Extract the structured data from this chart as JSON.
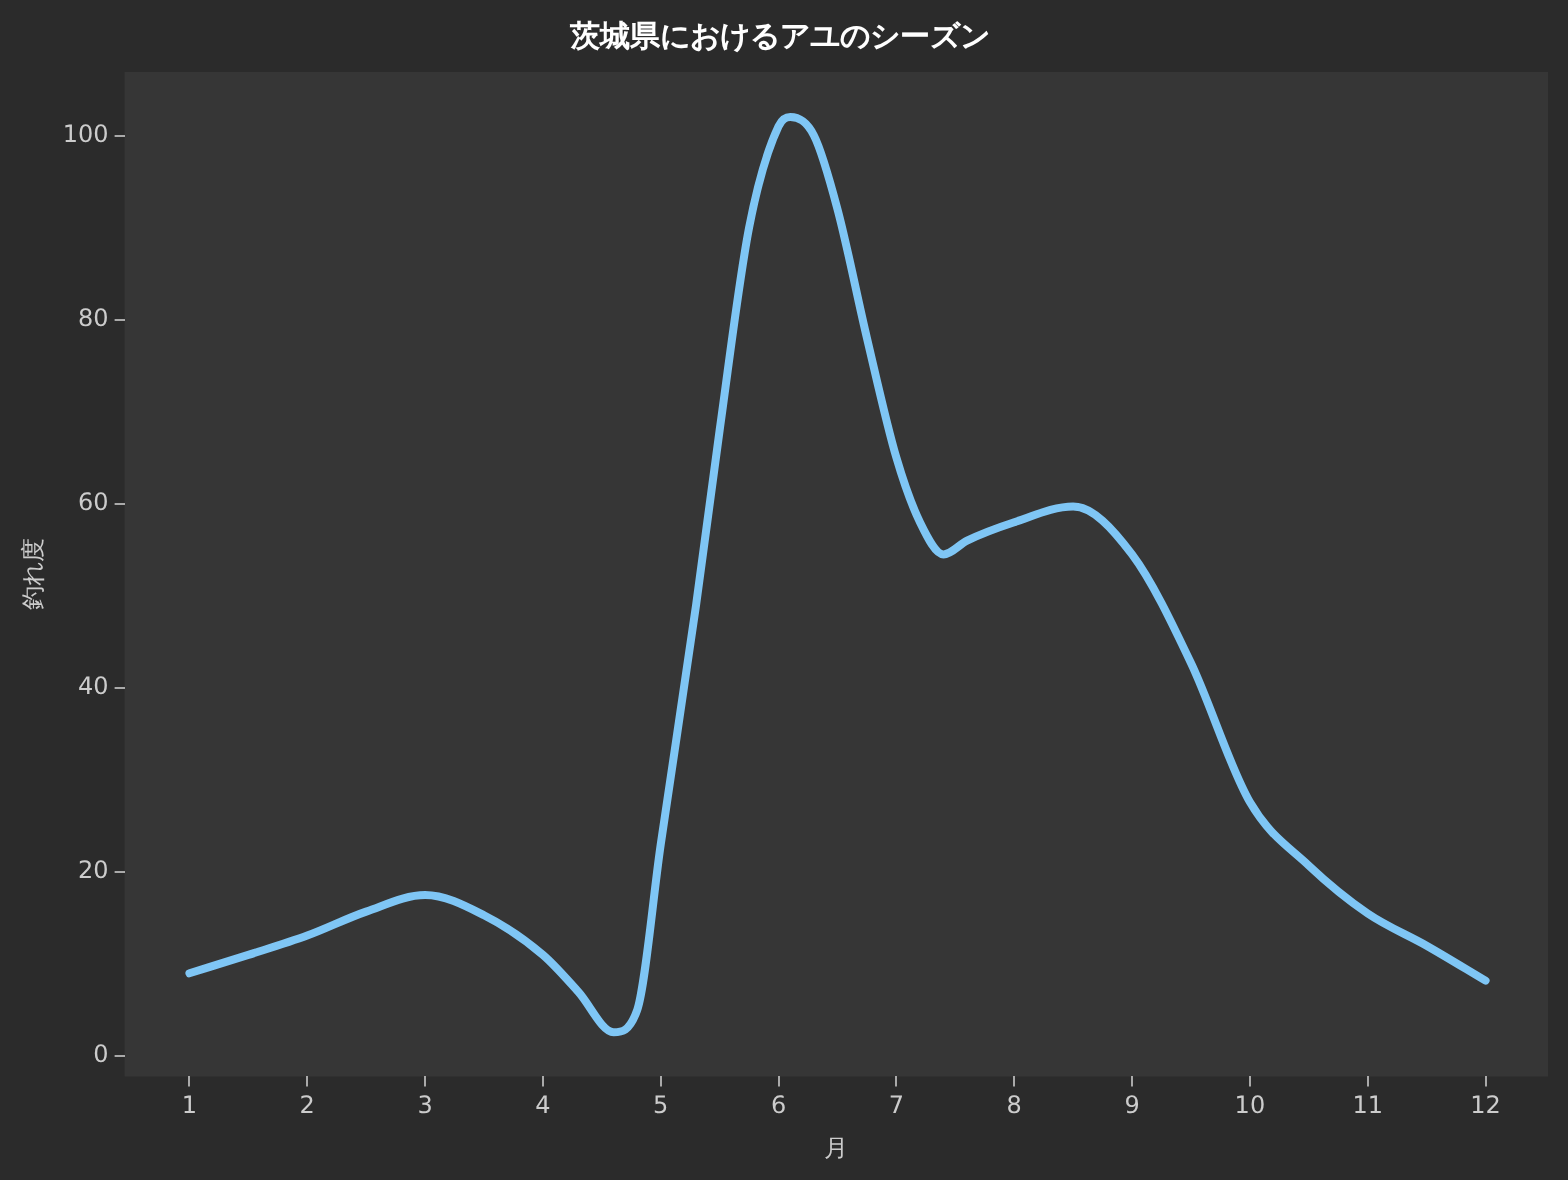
{
  "chart_data": {
    "type": "line",
    "title": "茨城県におけるアユのシーズン",
    "xlabel": "月",
    "ylabel": "釣れ度",
    "x": [
      1,
      1.5,
      2,
      2.5,
      3,
      3.5,
      4,
      4.3,
      4.6,
      4.8,
      5,
      5.3,
      5.5,
      5.75,
      6,
      6.1,
      6.3,
      6.5,
      6.75,
      7,
      7.2,
      7.4,
      7.6,
      8,
      8.5,
      9,
      9.5,
      10,
      10.5,
      11,
      11.5,
      12
    ],
    "series": [
      {
        "color": "#7fc6f5",
        "values": [
          9,
          11,
          13.1,
          15.7,
          17.5,
          15.3,
          11,
          7,
          2.6,
          5,
          23,
          49,
          68,
          90,
          101,
          102,
          100,
          92,
          78,
          65,
          58,
          54.5,
          56,
          58,
          59.7,
          54.5,
          42.7,
          27.6,
          20.7,
          15.5,
          12,
          8.2
        ]
      }
    ],
    "xlim": [
      0.45,
      12.53
    ],
    "ylim": [
      -2.2,
      106.9
    ],
    "xticks": [
      1,
      2,
      3,
      4,
      5,
      6,
      7,
      8,
      9,
      10,
      11,
      12
    ],
    "yticks": [
      0,
      20,
      40,
      60,
      80,
      100
    ],
    "grid": false,
    "legend": false,
    "marker": "none",
    "line_style": "solid"
  }
}
